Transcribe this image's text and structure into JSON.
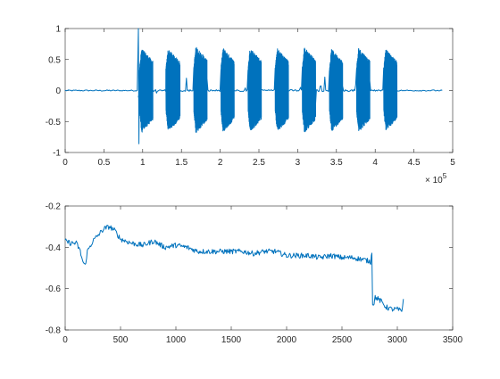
{
  "figure": {
    "background": "#ffffff"
  },
  "chart_data": [
    {
      "type": "line",
      "title": "",
      "xlabel": "",
      "ylabel": "",
      "xlim": [
        0,
        500000
      ],
      "ylim": [
        -1,
        1
      ],
      "x_exponent_label": "× 10",
      "x_exponent_power": "5",
      "xticks": [
        0,
        50000,
        100000,
        150000,
        200000,
        250000,
        300000,
        350000,
        400000,
        450000,
        500000
      ],
      "xtick_labels": [
        "0",
        "0.5",
        "1",
        "1.5",
        "2",
        "2.5",
        "3",
        "3.5",
        "4",
        "4.5",
        "5"
      ],
      "yticks": [
        -1,
        -0.5,
        0,
        0.5,
        1
      ],
      "ytick_labels": [
        "-1",
        "-0.5",
        "0",
        "0.5",
        "1"
      ],
      "grid": false,
      "color": "#0072BD",
      "series": [
        {
          "noise_floor": [
            0,
            94000
          ],
          "impulse": {
            "x": 94500,
            "max": 1.0,
            "min": -0.86
          },
          "trailing_floor": [
            438000,
            487000
          ],
          "bursts": [
            {
              "start": 96000,
              "end": 113000,
              "pos_peak": 0.68,
              "neg_peak": -0.68
            },
            {
              "start": 130000,
              "end": 148000,
              "pos_peak": 0.67,
              "neg_peak": -0.66
            },
            {
              "start": 166000,
              "end": 183000,
              "pos_peak": 0.71,
              "neg_peak": -0.69
            },
            {
              "start": 201000,
              "end": 218000,
              "pos_peak": 0.69,
              "neg_peak": -0.67
            },
            {
              "start": 236000,
              "end": 253000,
              "pos_peak": 0.69,
              "neg_peak": -0.67
            },
            {
              "start": 271000,
              "end": 288000,
              "pos_peak": 0.68,
              "neg_peak": -0.67
            },
            {
              "start": 306000,
              "end": 323000,
              "pos_peak": 0.7,
              "neg_peak": -0.68
            },
            {
              "start": 341000,
              "end": 358000,
              "pos_peak": 0.67,
              "neg_peak": -0.66
            },
            {
              "start": 376000,
              "end": 393000,
              "pos_peak": 0.69,
              "neg_peak": -0.67
            },
            {
              "start": 411000,
              "end": 428000,
              "pos_peak": 0.67,
              "neg_peak": -0.65
            }
          ]
        }
      ]
    },
    {
      "type": "line",
      "title": "",
      "xlabel": "",
      "ylabel": "",
      "xlim": [
        0,
        3500
      ],
      "ylim": [
        -0.8,
        -0.2
      ],
      "xticks": [
        0,
        500,
        1000,
        1500,
        2000,
        2500,
        3000,
        3500
      ],
      "xtick_labels": [
        "0",
        "500",
        "1000",
        "1500",
        "2000",
        "2500",
        "3000",
        "3500"
      ],
      "yticks": [
        -0.8,
        -0.6,
        -0.4,
        -0.2
      ],
      "ytick_labels": [
        "-0.8",
        "-0.6",
        "-0.4",
        "-0.2"
      ],
      "grid": false,
      "color": "#0072BD",
      "series": [
        {
          "x": [
            0,
            50,
            100,
            130,
            160,
            180,
            200,
            250,
            300,
            350,
            400,
            450,
            500,
            600,
            700,
            800,
            900,
            1000,
            1100,
            1200,
            1300,
            1400,
            1500,
            1600,
            1700,
            1800,
            1900,
            2000,
            2100,
            2200,
            2300,
            2400,
            2500,
            2600,
            2700,
            2760,
            2770,
            2790,
            2800,
            2850,
            2900,
            2950,
            3000,
            3040,
            3055
          ],
          "y": [
            -0.37,
            -0.38,
            -0.38,
            -0.41,
            -0.47,
            -0.49,
            -0.42,
            -0.37,
            -0.34,
            -0.31,
            -0.3,
            -0.32,
            -0.36,
            -0.38,
            -0.39,
            -0.37,
            -0.4,
            -0.39,
            -0.4,
            -0.42,
            -0.42,
            -0.42,
            -0.42,
            -0.42,
            -0.43,
            -0.42,
            -0.42,
            -0.44,
            -0.44,
            -0.44,
            -0.45,
            -0.44,
            -0.45,
            -0.45,
            -0.46,
            -0.47,
            -0.42,
            -0.67,
            -0.64,
            -0.66,
            -0.69,
            -0.7,
            -0.7,
            -0.71,
            -0.65
          ]
        }
      ]
    }
  ]
}
